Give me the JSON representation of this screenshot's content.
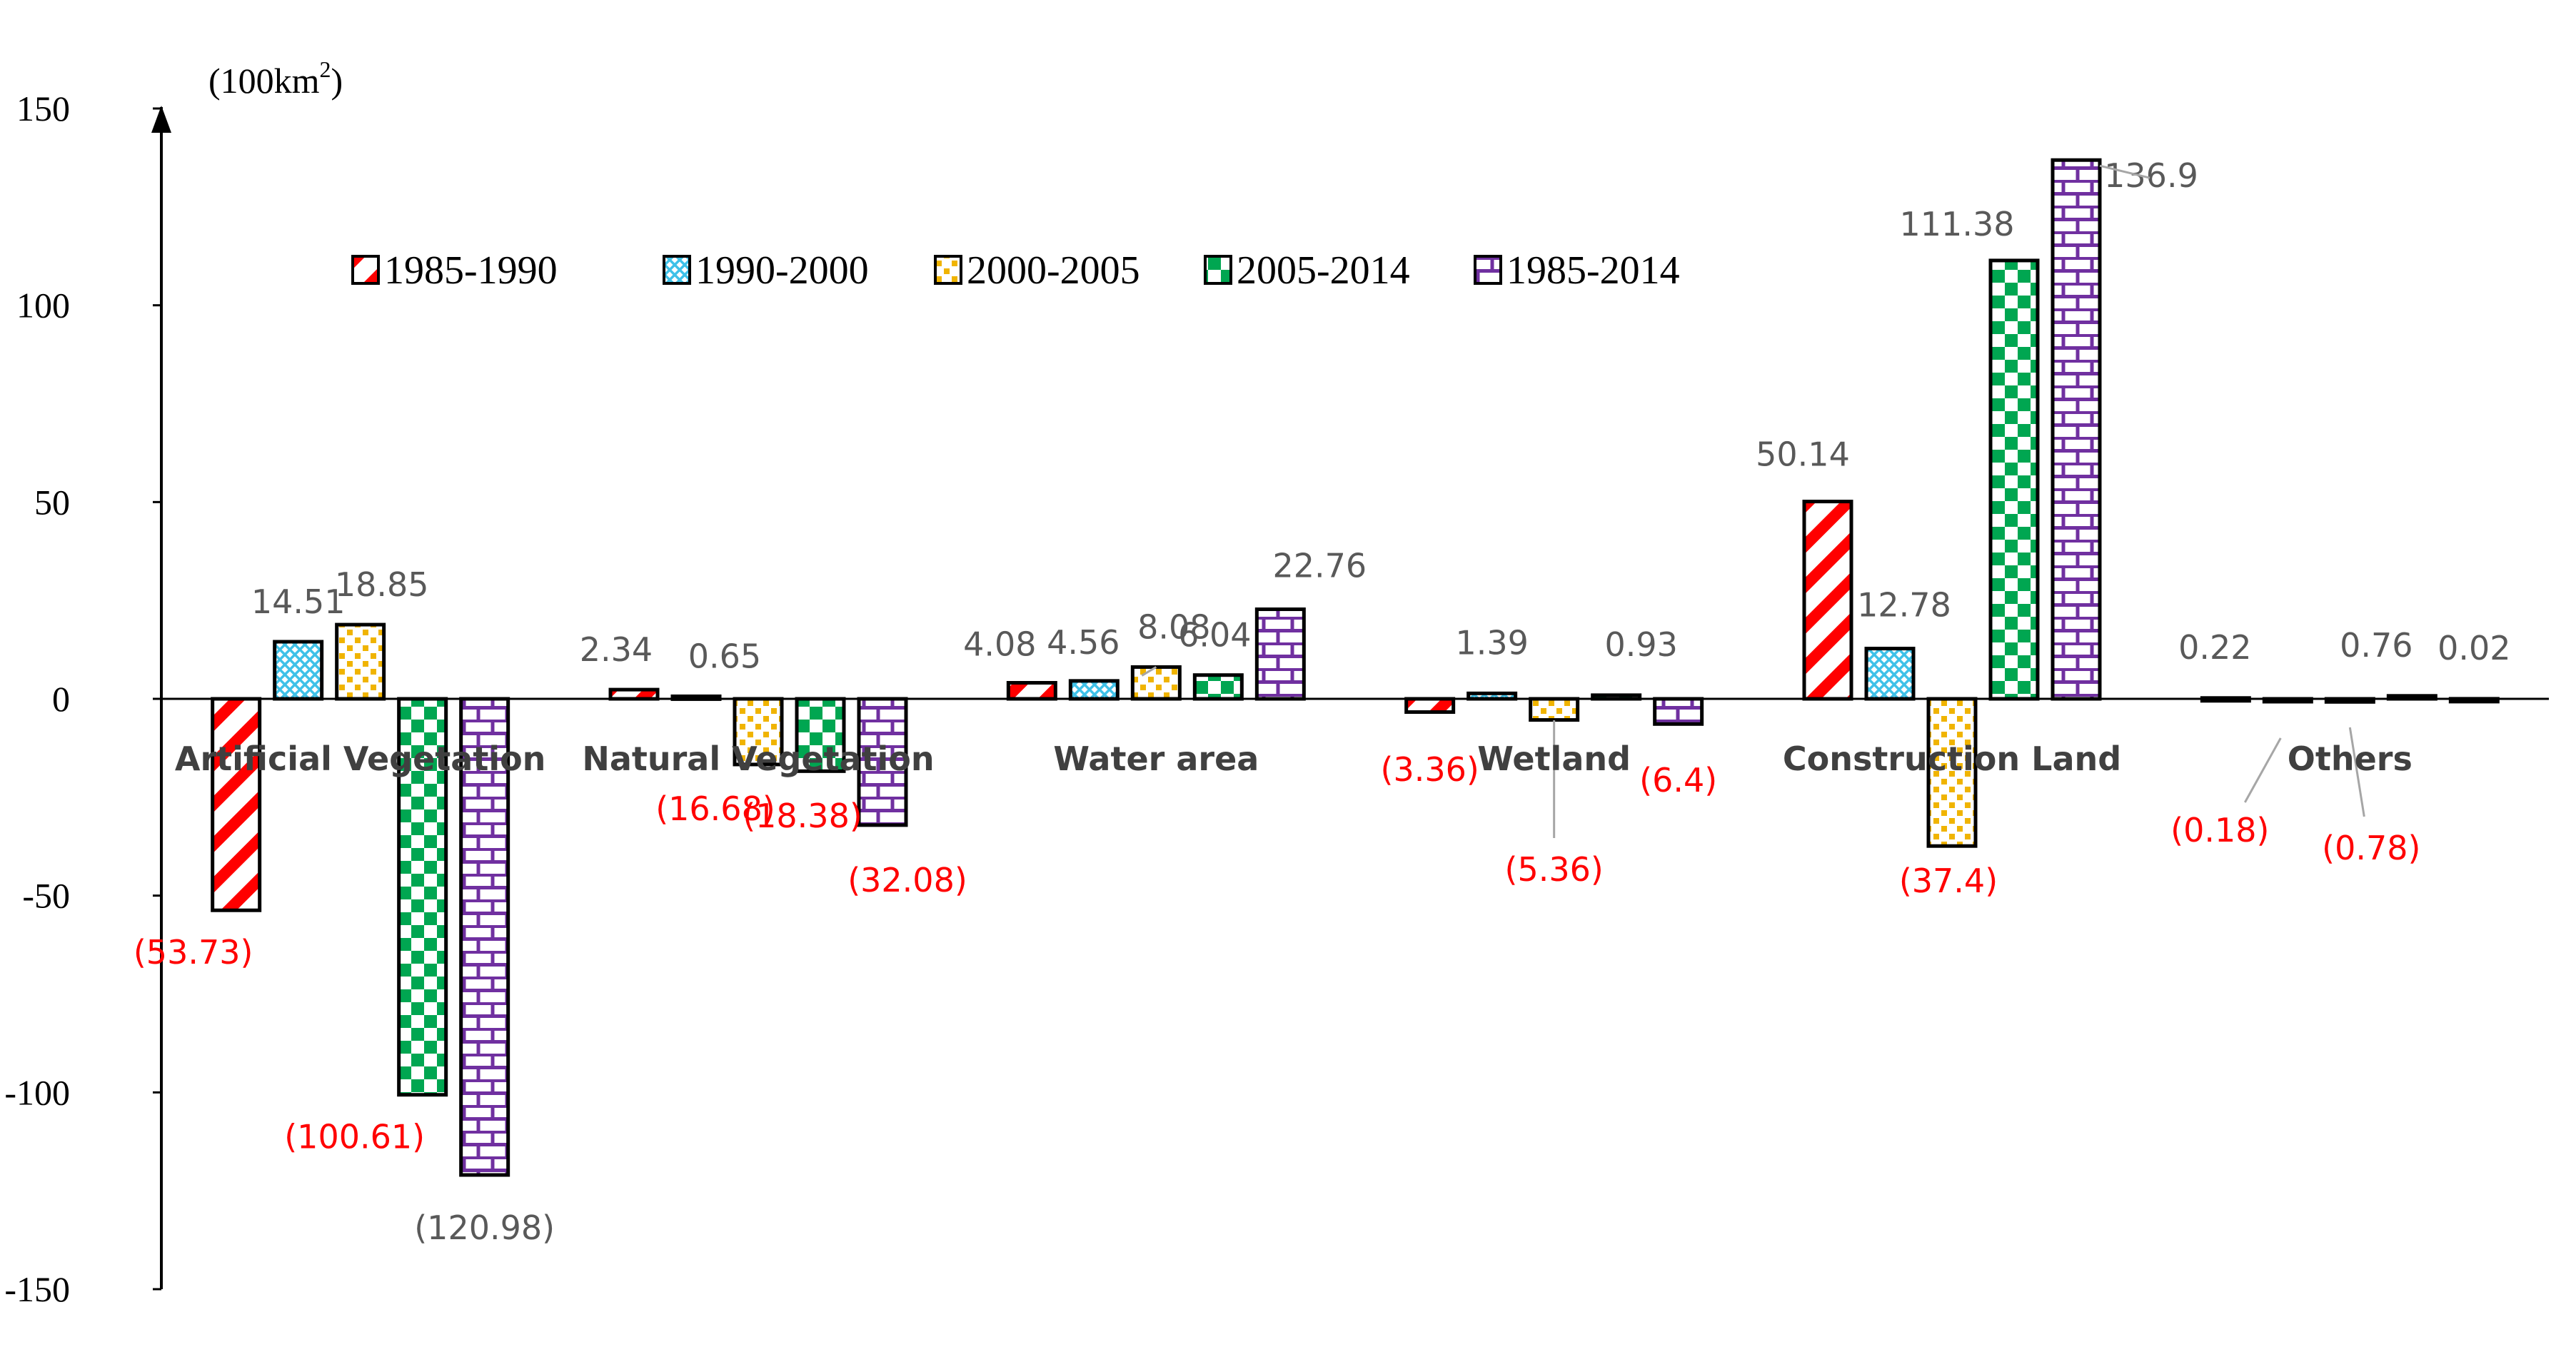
{
  "chart_data": {
    "type": "bar",
    "title": "",
    "unit_label": "(100km",
    "unit_superscript": "2",
    "unit_close": ")",
    "xlabel": "",
    "ylabel": "",
    "ylim": [
      -150,
      150
    ],
    "yticks": [
      -150,
      -100,
      -50,
      0,
      50,
      100,
      150
    ],
    "ytick_labels": [
      "-150",
      "-100",
      "-50",
      "0",
      "50",
      "100",
      "150"
    ],
    "categories": [
      "Artificial Vegetation",
      "Natural Vegetation",
      "Water area",
      "Wetland",
      "Construction Land",
      "Others"
    ],
    "series": [
      {
        "name": "1985-1990",
        "values": [
          -53.73,
          2.34,
          4.08,
          -3.36,
          50.14,
          0.22
        ],
        "color": "#ff0000",
        "pattern": "diagonal-stripes"
      },
      {
        "name": "1990-2000",
        "values": [
          14.51,
          0.65,
          4.56,
          1.39,
          12.78,
          -0.18
        ],
        "color": "#3ec1e8",
        "pattern": "crosshatch"
      },
      {
        "name": "2000-2005",
        "values": [
          18.85,
          -16.68,
          8.08,
          -5.36,
          -37.4,
          -0.78
        ],
        "color": "#f0b400",
        "pattern": "dots"
      },
      {
        "name": "2005-2014",
        "values": [
          -100.61,
          -18.38,
          6.04,
          0.93,
          111.38,
          0.76
        ],
        "color": "#00a651",
        "pattern": "checker"
      },
      {
        "name": "1985-2014",
        "values": [
          -120.98,
          -32.08,
          22.76,
          -6.4,
          136.9,
          0.02
        ],
        "color": "#7030a0",
        "pattern": "brick"
      }
    ],
    "data_labels": [
      {
        "text": "(53.73)",
        "series": 0,
        "category": 0,
        "color": "#ff0000"
      },
      {
        "text": "14.51",
        "series": 1,
        "category": 0,
        "color": "#595959"
      },
      {
        "text": "18.85",
        "series": 2,
        "category": 0,
        "color": "#595959"
      },
      {
        "text": "(100.61)",
        "series": 3,
        "category": 0,
        "color": "#ff0000"
      },
      {
        "text": "(120.98)",
        "series": 4,
        "category": 0,
        "color": "#595959"
      },
      {
        "text": "2.34",
        "series": 0,
        "category": 1,
        "color": "#595959"
      },
      {
        "text": "0.65",
        "series": 1,
        "category": 1,
        "color": "#595959"
      },
      {
        "text": "(16.68)",
        "series": 2,
        "category": 1,
        "color": "#ff0000"
      },
      {
        "text": "(18.38)",
        "series": 3,
        "category": 1,
        "color": "#ff0000"
      },
      {
        "text": "(32.08)",
        "series": 4,
        "category": 1,
        "color": "#ff0000"
      },
      {
        "text": "4.08",
        "series": 0,
        "category": 2,
        "color": "#595959"
      },
      {
        "text": "4.56",
        "series": 1,
        "category": 2,
        "color": "#595959"
      },
      {
        "text": "8.08",
        "series": 2,
        "category": 2,
        "color": "#595959"
      },
      {
        "text": "6.04",
        "series": 3,
        "category": 2,
        "color": "#595959"
      },
      {
        "text": "22.76",
        "series": 4,
        "category": 2,
        "color": "#595959"
      },
      {
        "text": "(3.36)",
        "series": 0,
        "category": 3,
        "color": "#ff0000"
      },
      {
        "text": "1.39",
        "series": 1,
        "category": 3,
        "color": "#595959"
      },
      {
        "text": "(5.36)",
        "series": 2,
        "category": 3,
        "color": "#ff0000"
      },
      {
        "text": "0.93",
        "series": 3,
        "category": 3,
        "color": "#595959"
      },
      {
        "text": "(6.4)",
        "series": 4,
        "category": 3,
        "color": "#ff0000"
      },
      {
        "text": "50.14",
        "series": 0,
        "category": 4,
        "color": "#595959"
      },
      {
        "text": "12.78",
        "series": 1,
        "category": 4,
        "color": "#595959"
      },
      {
        "text": "(37.4)",
        "series": 2,
        "category": 4,
        "color": "#ff0000"
      },
      {
        "text": "111.38",
        "series": 3,
        "category": 4,
        "color": "#595959"
      },
      {
        "text": "136.9",
        "series": 4,
        "category": 4,
        "color": "#595959"
      },
      {
        "text": "0.22",
        "series": 0,
        "category": 5,
        "color": "#595959"
      },
      {
        "text": "(0.18)",
        "series": 1,
        "category": 5,
        "color": "#ff0000"
      },
      {
        "text": "(0.78)",
        "series": 2,
        "category": 5,
        "color": "#ff0000"
      },
      {
        "text": "0.76",
        "series": 3,
        "category": 5,
        "color": "#595959"
      },
      {
        "text": "0.02",
        "series": 4,
        "category": 5,
        "color": "#595959"
      }
    ],
    "legend_position": "top",
    "grid": false
  }
}
